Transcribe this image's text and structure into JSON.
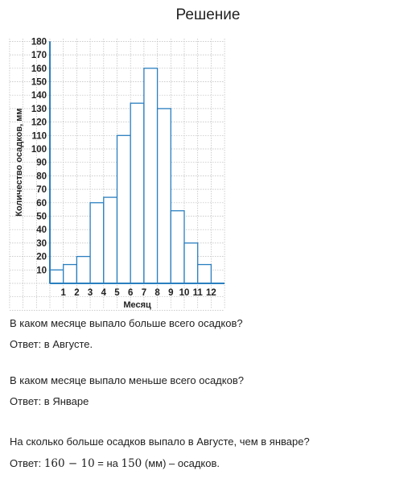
{
  "heading": "Решение",
  "chart_data": {
    "type": "bar",
    "ylabel": "Количество осадков, мм",
    "xlabel": "Месяц",
    "categories": [
      "1",
      "2",
      "3",
      "4",
      "5",
      "6",
      "7",
      "8",
      "9",
      "10",
      "11",
      "12"
    ],
    "values": [
      10,
      14,
      20,
      60,
      64,
      110,
      134,
      160,
      130,
      54,
      30,
      14
    ],
    "ylim": [
      0,
      180
    ],
    "yticks": [
      "10",
      "20",
      "30",
      "40",
      "50",
      "60",
      "70",
      "80",
      "90",
      "100",
      "110",
      "120",
      "130",
      "140",
      "150",
      "160",
      "170",
      "180"
    ],
    "grid": true,
    "bar_color": "#2a7fc0",
    "grid_color": "#bbbbbb"
  },
  "qa": [
    {
      "question": "В каком месяце выпало больше всего осадков?",
      "answer": "Ответ: в Августе."
    },
    {
      "question": "В каком месяце выпало меньше всего осадков?",
      "answer": "Ответ: в Январе"
    },
    {
      "question": "На сколько больше осадков выпало в Августе, чем в январе?",
      "answer_prefix": "Ответ: ",
      "answer_math": "160 − 10",
      "answer_mid": " = на ",
      "answer_value": "150",
      "answer_suffix": " (мм) – осадков."
    }
  ]
}
